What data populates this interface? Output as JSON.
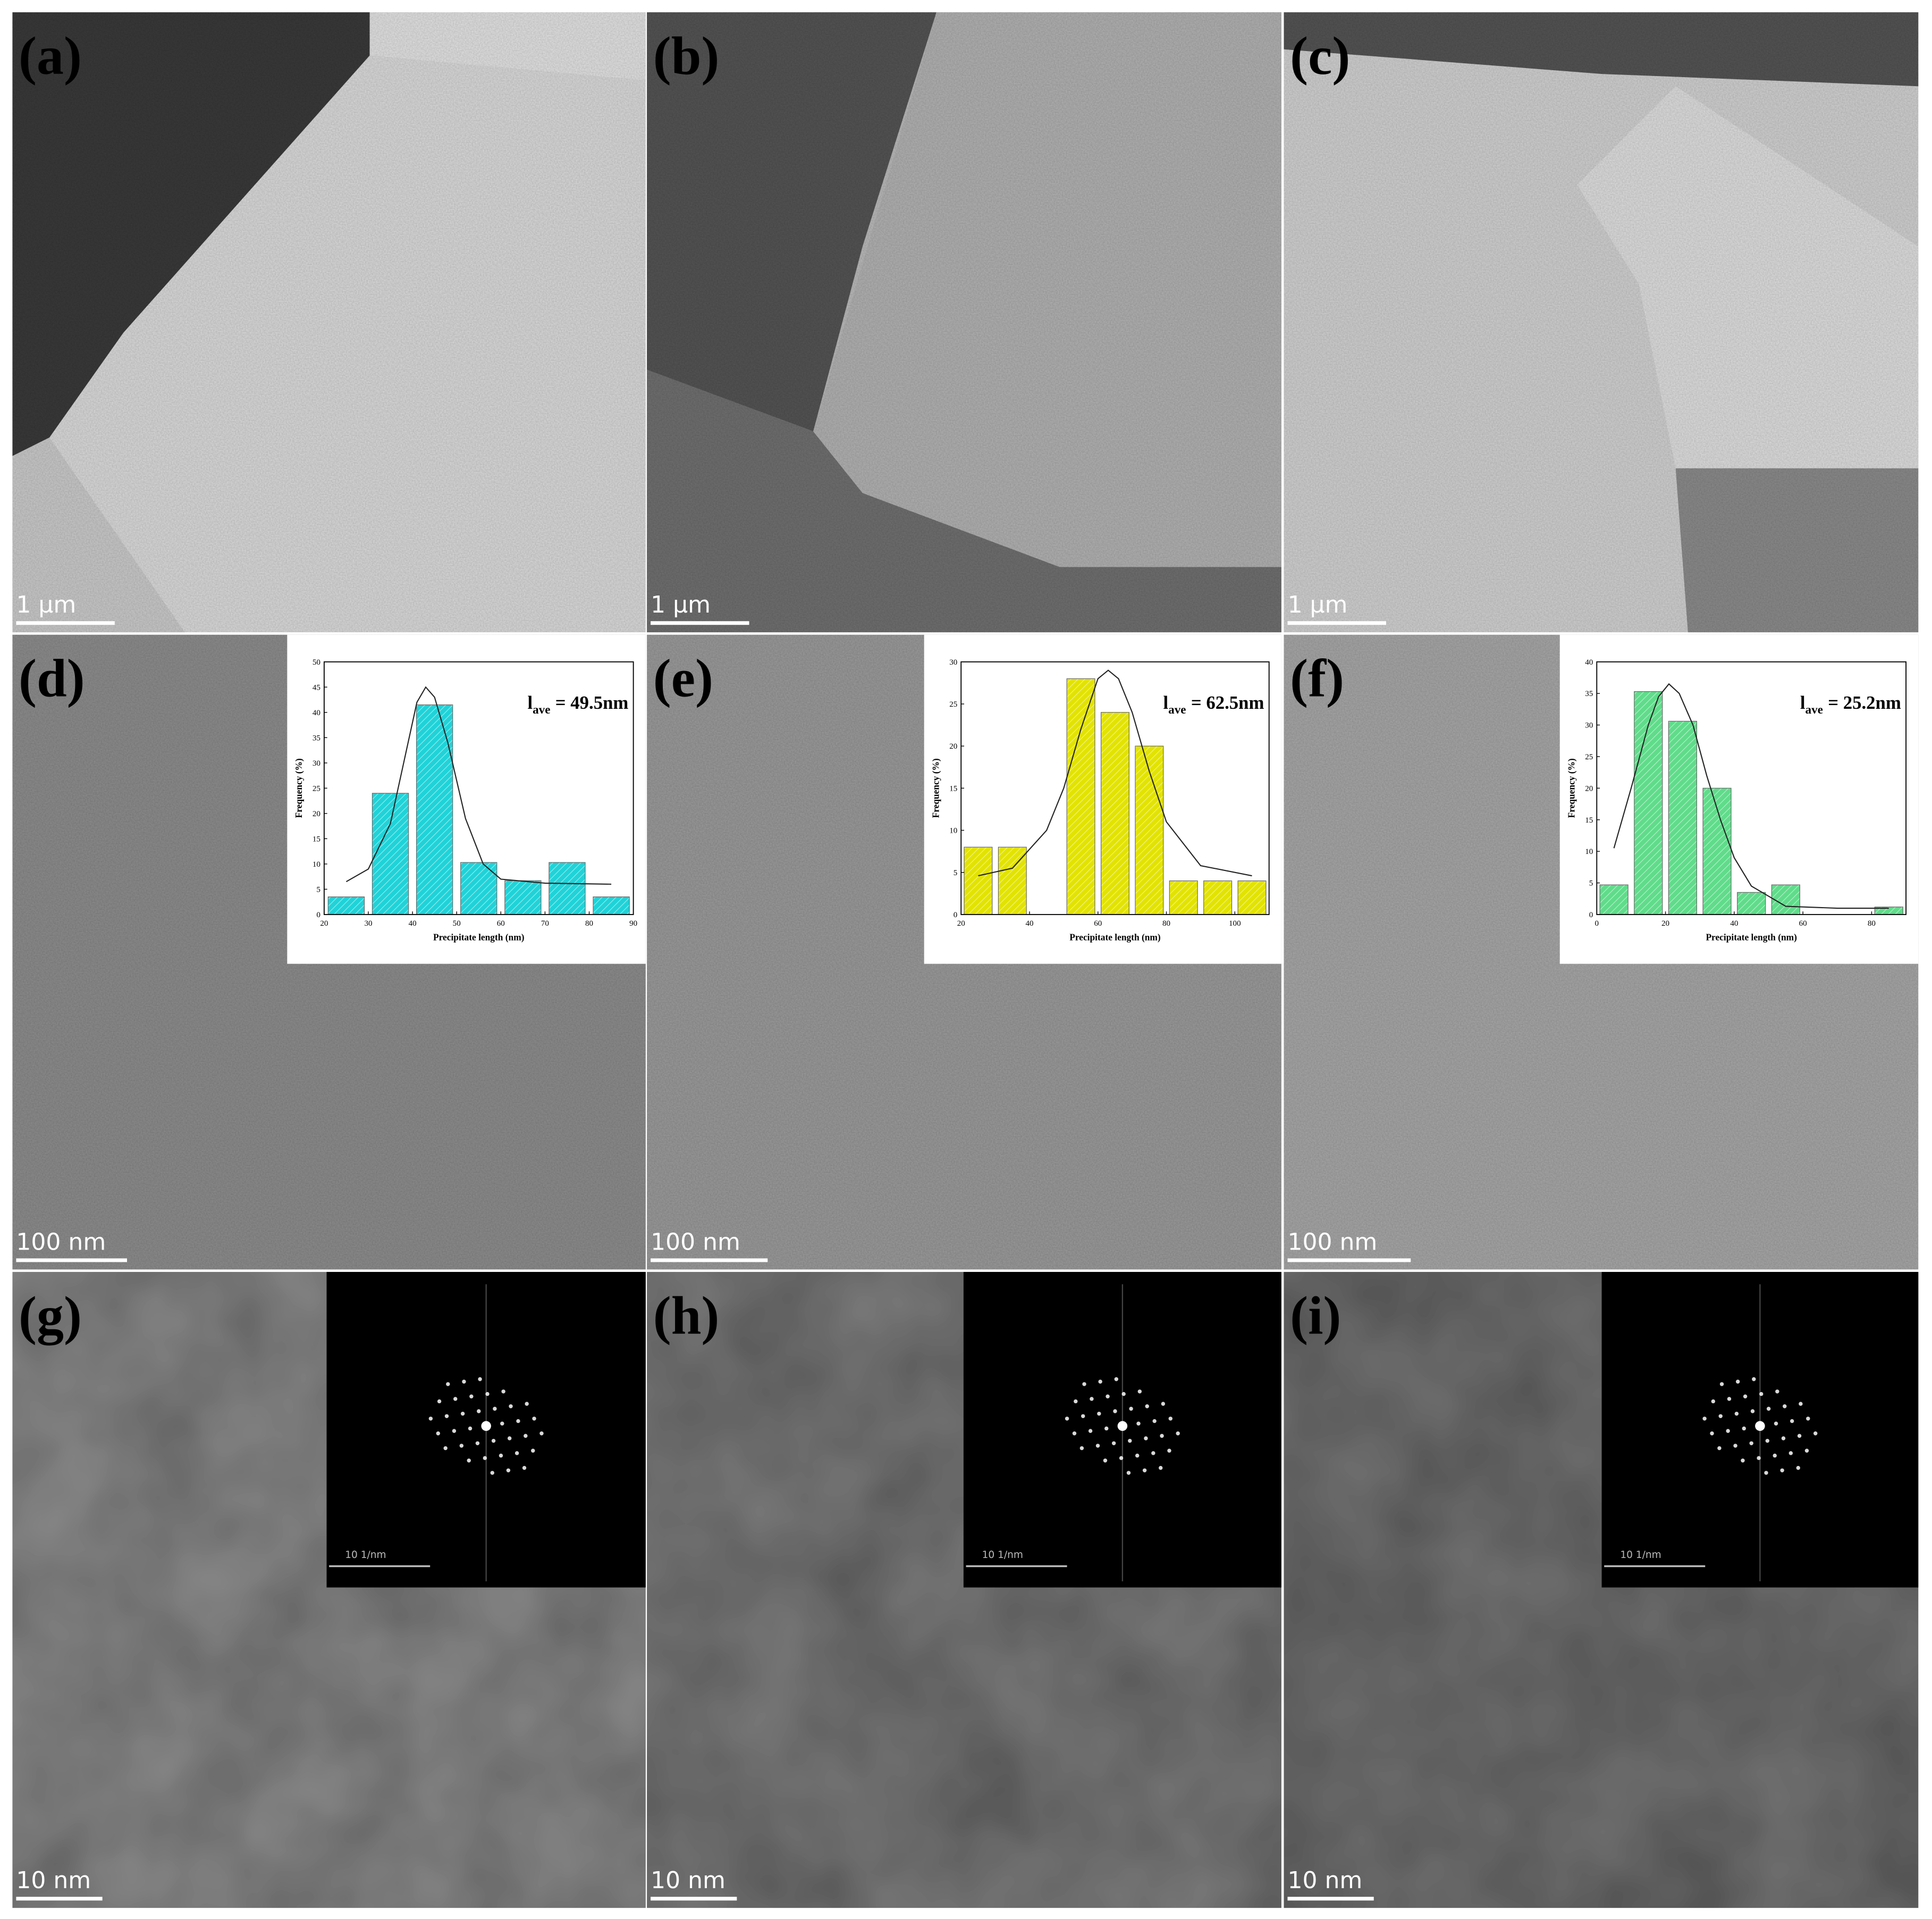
{
  "panels": [
    {
      "label": "(a)",
      "scale_bar": "1 μm"
    },
    {
      "label": "(b)",
      "scale_bar": "1 μm"
    },
    {
      "label": "(c)",
      "scale_bar": "1 μm"
    },
    {
      "label": "(d)",
      "scale_bar": "100 nm"
    },
    {
      "label": "(e)",
      "scale_bar": "100 nm"
    },
    {
      "label": "(f)",
      "scale_bar": "100 nm"
    },
    {
      "label": "(g)",
      "scale_bar": "10 nm"
    },
    {
      "label": "(h)",
      "scale_bar": "10 nm"
    },
    {
      "label": "(i)",
      "scale_bar": "10 nm"
    }
  ],
  "fft_insets": [
    {
      "scale_bar": "10 1/nm"
    },
    {
      "scale_bar": "10 1/nm"
    },
    {
      "scale_bar": "10 1/nm"
    }
  ],
  "chart_data": [
    {
      "type": "bar",
      "x": [
        25,
        35,
        45,
        55,
        65,
        75,
        85
      ],
      "values": [
        3.5,
        24,
        41.5,
        10.3,
        6.7,
        10.3,
        3.5
      ],
      "color": "#1fd3d8",
      "xlim": [
        20,
        90
      ],
      "xticks": [
        20,
        30,
        40,
        50,
        60,
        70,
        80,
        90
      ],
      "ylim": [
        0,
        50
      ],
      "yticks": [
        0,
        5,
        10,
        15,
        20,
        25,
        30,
        35,
        40,
        45,
        50
      ],
      "xlabel": "Precipitate length (nm)",
      "ylabel": "Frequency (%)",
      "annotation": {
        "symbol": "l",
        "subscript": "ave",
        "text": "= 49.5nm"
      },
      "fit": {
        "x": [
          25,
          30,
          35,
          38,
          41,
          43,
          45,
          48,
          52,
          56,
          60,
          70,
          85
        ],
        "values": [
          6.5,
          9,
          18,
          30,
          42,
          45,
          43,
          34,
          19,
          10,
          7,
          6.2,
          6
        ]
      }
    },
    {
      "type": "bar",
      "x": [
        25,
        35,
        55,
        65,
        75,
        85,
        95,
        105
      ],
      "values": [
        8,
        8,
        28,
        24,
        20,
        4,
        4,
        4
      ],
      "color": "#e3e300",
      "xlim": [
        20,
        110
      ],
      "xticks": [
        20,
        40,
        60,
        80,
        100
      ],
      "ylim": [
        0,
        30
      ],
      "yticks": [
        0,
        5,
        10,
        15,
        20,
        25,
        30
      ],
      "xlabel": "Precipitate length (nm)",
      "ylabel": "Frequency (%)",
      "annotation": {
        "symbol": "l",
        "subscript": "ave",
        "text": "= 62.5nm"
      },
      "fit": {
        "x": [
          25,
          35,
          45,
          50,
          55,
          60,
          63,
          66,
          70,
          75,
          80,
          90,
          105
        ],
        "values": [
          4.6,
          5.5,
          10,
          15,
          22,
          28,
          29,
          28,
          24,
          17,
          11,
          5.8,
          4.6
        ]
      }
    },
    {
      "type": "bar",
      "x": [
        5,
        15,
        25,
        35,
        45,
        55,
        85
      ],
      "values": [
        4.7,
        35.3,
        30.6,
        20,
        3.5,
        4.7,
        1.2
      ],
      "color": "#5fdc8a",
      "xlim": [
        0,
        90
      ],
      "xticks": [
        0,
        20,
        40,
        60,
        80
      ],
      "ylim": [
        0,
        40
      ],
      "yticks": [
        0,
        5,
        10,
        15,
        20,
        25,
        30,
        35,
        40
      ],
      "xlabel": "Precipitate length (nm)",
      "ylabel": "Frequency (%)",
      "annotation": {
        "symbol": "l",
        "subscript": "ave",
        "text": "= 25.2nm"
      },
      "fit": {
        "x": [
          5,
          10,
          15,
          18,
          21,
          24,
          28,
          32,
          36,
          40,
          45,
          55,
          70,
          85
        ],
        "values": [
          10.5,
          20,
          30,
          34.5,
          36.5,
          35,
          30,
          22,
          15,
          9,
          4.5,
          1.3,
          1,
          1
        ]
      }
    }
  ]
}
